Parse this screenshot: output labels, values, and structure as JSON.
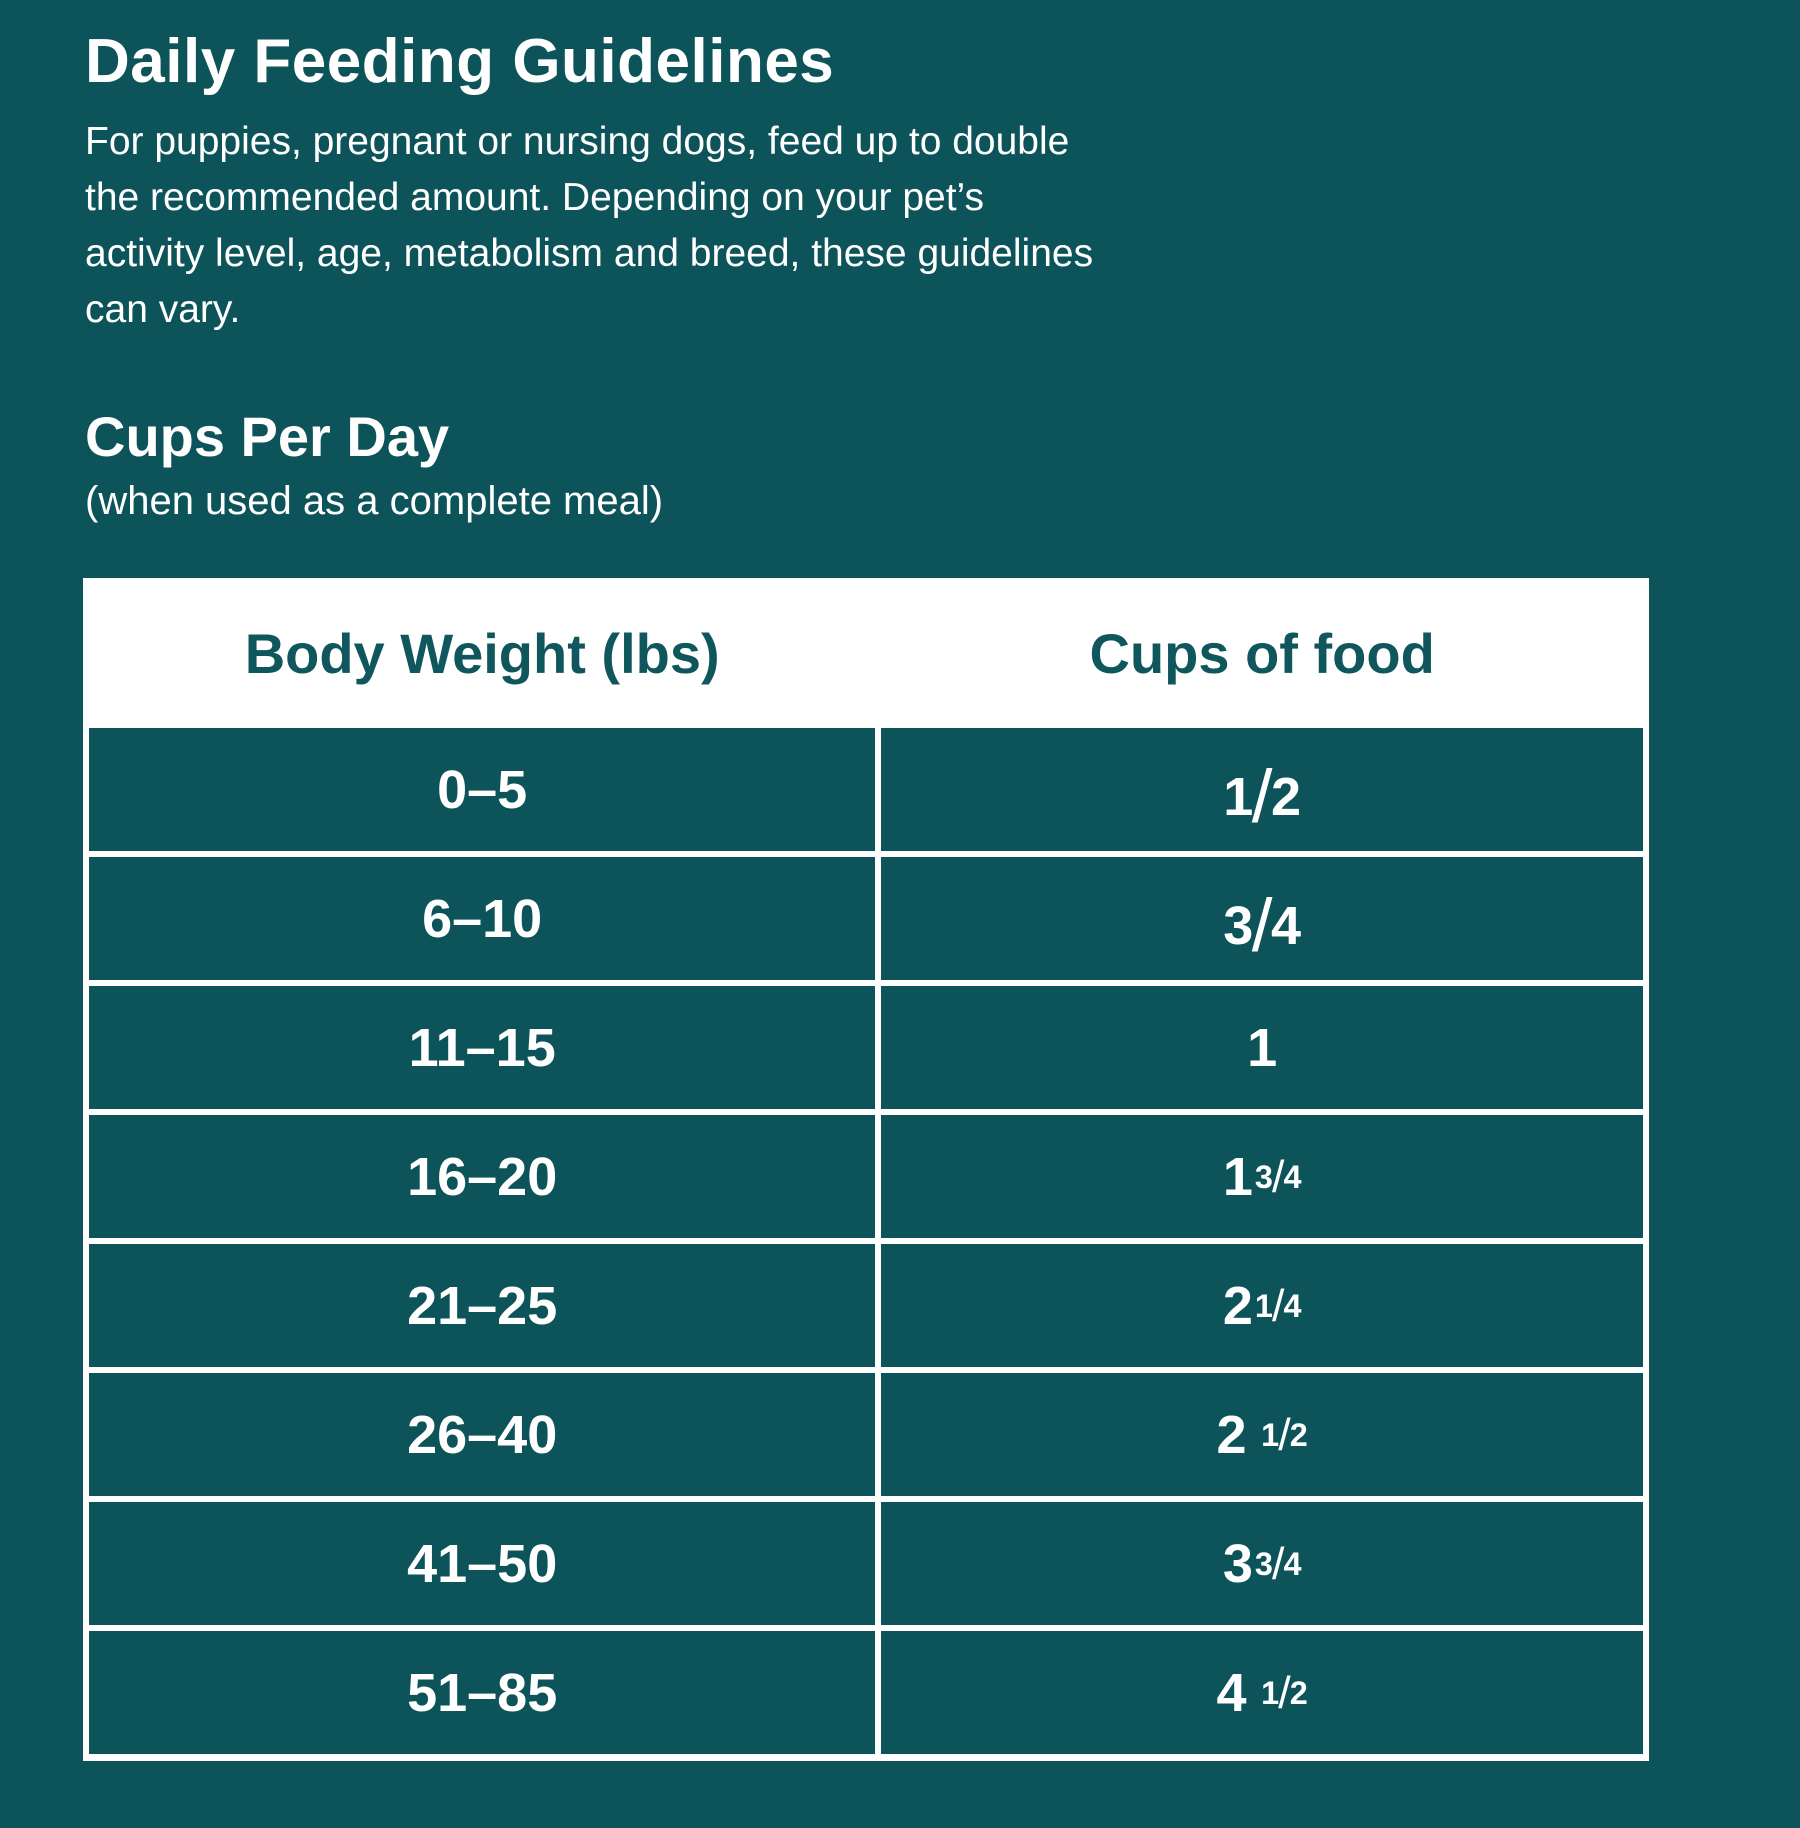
{
  "colors": {
    "background": "#0d535a",
    "table_frame": "#ffffff",
    "table_header_text": "#0f565d",
    "body_text": "#ffffff"
  },
  "header": {
    "title": "Daily Feeding Guidelines",
    "description_lines": [
      "For puppies, pregnant or nursing dogs, feed up to double",
      "the recommended amount. Depending on your pet’s",
      "activity level, age, metabolism and breed, these guidelines",
      "can vary."
    ]
  },
  "subheader": {
    "title": "Cups Per Day",
    "note": "(when used as a complete meal)"
  },
  "table": {
    "columns": [
      "Body Weight (lbs)",
      "Cups of food"
    ],
    "rows": [
      {
        "weight": "0–5",
        "cups": {
          "whole": "",
          "num": "1",
          "den": "2",
          "gap": false
        }
      },
      {
        "weight": "6–10",
        "cups": {
          "whole": "",
          "num": "3",
          "den": "4",
          "gap": false
        }
      },
      {
        "weight": "11–15",
        "cups": {
          "whole": "1",
          "num": "",
          "den": "",
          "gap": false
        }
      },
      {
        "weight": "16–20",
        "cups": {
          "whole": "1",
          "num": "3",
          "den": "4",
          "gap": false
        }
      },
      {
        "weight": "21–25",
        "cups": {
          "whole": "2",
          "num": "1",
          "den": "4",
          "gap": false
        }
      },
      {
        "weight": "26–40",
        "cups": {
          "whole": "2",
          "num": "1",
          "den": "2",
          "gap": true
        }
      },
      {
        "weight": "41–50",
        "cups": {
          "whole": "3",
          "num": "3",
          "den": "4",
          "gap": false
        }
      },
      {
        "weight": "51–85",
        "cups": {
          "whole": "4",
          "num": "1",
          "den": "2",
          "gap": true
        }
      }
    ]
  }
}
